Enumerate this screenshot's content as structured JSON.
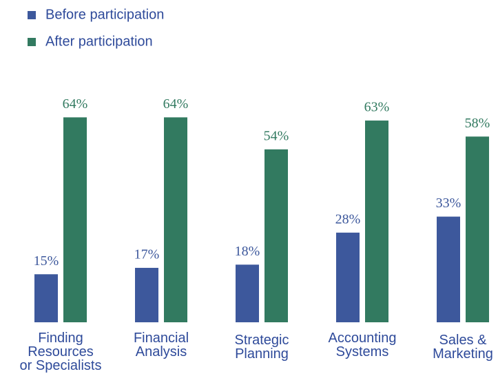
{
  "chart_data": {
    "type": "bar",
    "categories": [
      "Finding\nResources\nor Specialists",
      "Financial\nAnalysis",
      "Strategic\nPlanning",
      "Accounting\nSystems",
      "Sales &\nMarketing"
    ],
    "series": [
      {
        "name": "Before participation",
        "color": "#3d589c",
        "values": [
          15,
          17,
          18,
          28,
          33
        ],
        "value_labels": [
          "15%",
          "17%",
          "18%",
          "28%",
          "33%"
        ]
      },
      {
        "name": "After participation",
        "color": "#327a60",
        "values": [
          64,
          64,
          54,
          63,
          58
        ],
        "value_labels": [
          "64%",
          "64%",
          "54%",
          "63%",
          "58%"
        ]
      }
    ]
  }
}
